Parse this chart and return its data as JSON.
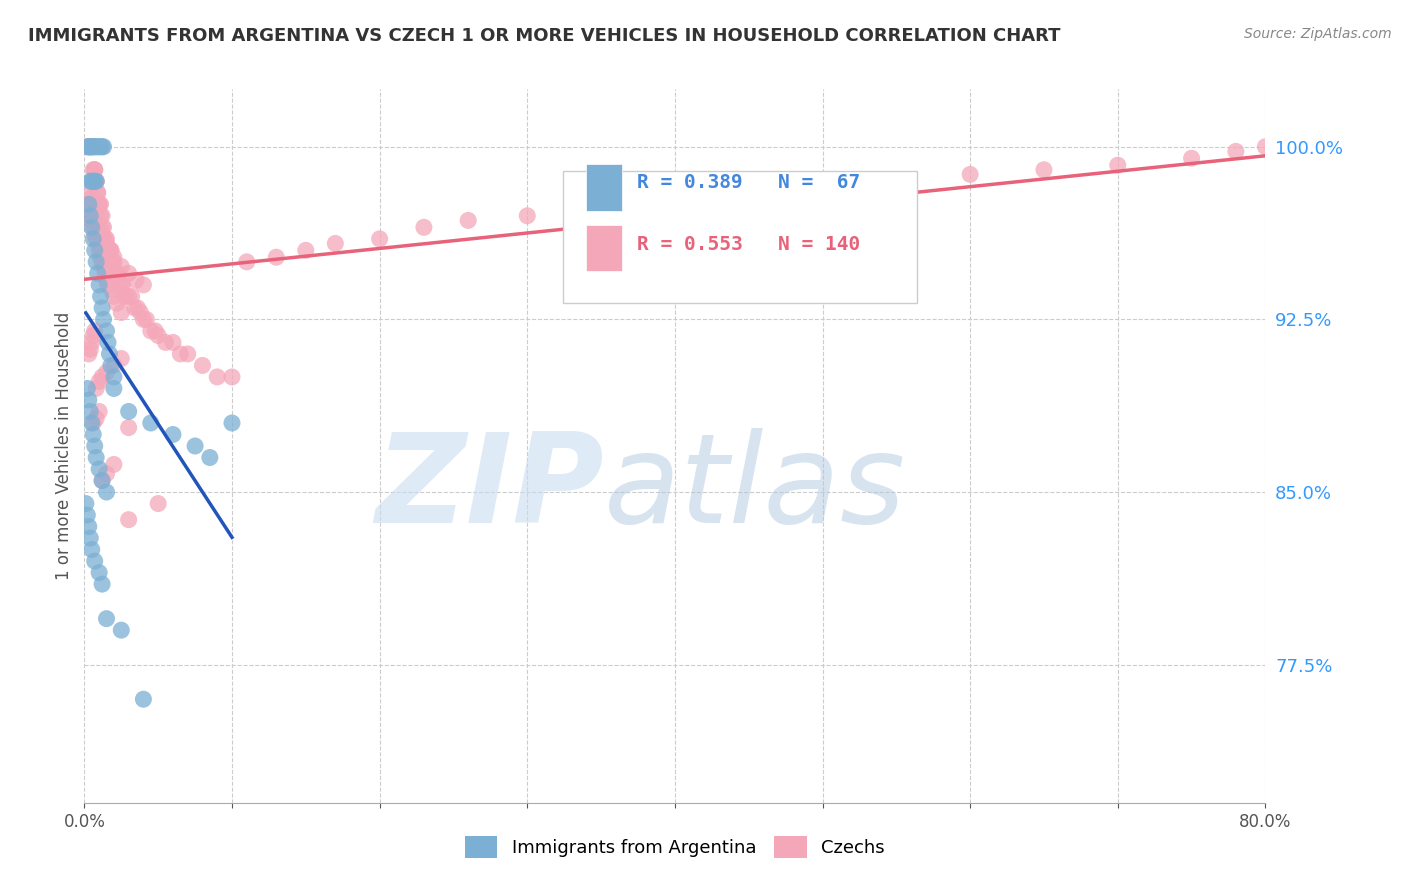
{
  "title": "IMMIGRANTS FROM ARGENTINA VS CZECH 1 OR MORE VEHICLES IN HOUSEHOLD CORRELATION CHART",
  "source": "Source: ZipAtlas.com",
  "ylabel": "1 or more Vehicles in Household",
  "xlim": [
    0.0,
    0.8
  ],
  "ylim": [
    0.715,
    1.025
  ],
  "xtick_positions": [
    0.0,
    0.1,
    0.2,
    0.3,
    0.4,
    0.5,
    0.6,
    0.7,
    0.8
  ],
  "xticklabels": [
    "0.0%",
    "",
    "",
    "",
    "",
    "",
    "",
    "",
    "80.0%"
  ],
  "ytick_positions": [
    0.775,
    0.85,
    0.925,
    1.0
  ],
  "ytick_labels": [
    "77.5%",
    "85.0%",
    "92.5%",
    "100.0%"
  ],
  "arg_R": 0.389,
  "arg_N": 67,
  "czech_R": 0.553,
  "czech_N": 140,
  "arg_color": "#7bafd4",
  "czech_color": "#f4a7b9",
  "arg_line_color": "#2255bb",
  "czech_line_color": "#e8637a",
  "legend_label_arg": "Immigrants from Argentina",
  "legend_label_czech": "Czechs",
  "legend_R_color": "#4488dd",
  "legend_R_czech_color": "#e8637a",
  "watermark_zip_color": "#c8ddf0",
  "watermark_atlas_color": "#b8cce4"
}
